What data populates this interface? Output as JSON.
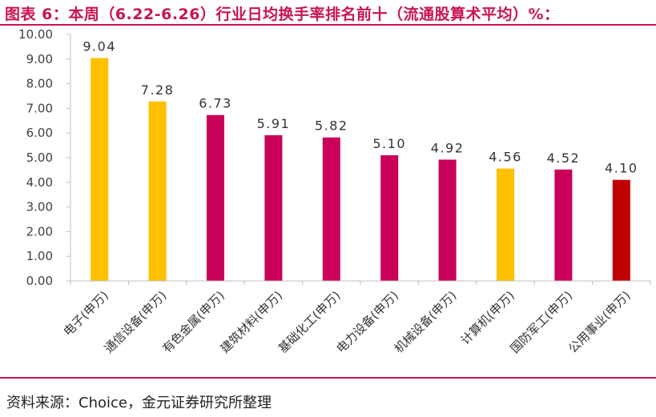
{
  "figure": {
    "title": "图表 6：本周（6.22-6.26）行业日均换手率排名前十（流通股算术平均）%：",
    "source": "资料来源：Choice，金元证券研究所整理"
  },
  "chart_data": {
    "type": "bar",
    "categories": [
      "电子(申万)",
      "通信设备(申万)",
      "有色金属(申万)",
      "建筑材料(申万)",
      "基础化工(申万)",
      "电力设备(申万)",
      "机械设备(申万)",
      "计算机(申万)",
      "国防军工(申万)",
      "公用事业(申万)"
    ],
    "values": [
      9.04,
      7.28,
      6.73,
      5.91,
      5.82,
      5.1,
      4.92,
      4.56,
      4.52,
      4.1
    ],
    "value_labels": [
      "9.04",
      "7.28",
      "6.73",
      "5.91",
      "5.82",
      "5.10",
      "4.92",
      "4.56",
      "4.52",
      "4.10"
    ],
    "bar_colors": [
      "#ffc000",
      "#ffc000",
      "#c8005a",
      "#c8005a",
      "#c8005a",
      "#c8005a",
      "#c8005a",
      "#ffc000",
      "#c8005a",
      "#c00000"
    ],
    "yticks": [
      "0.00",
      "1.00",
      "2.00",
      "3.00",
      "4.00",
      "5.00",
      "6.00",
      "7.00",
      "8.00",
      "9.00",
      "10.00"
    ],
    "ylim": [
      0,
      10
    ],
    "grid": false,
    "legend": "none"
  }
}
